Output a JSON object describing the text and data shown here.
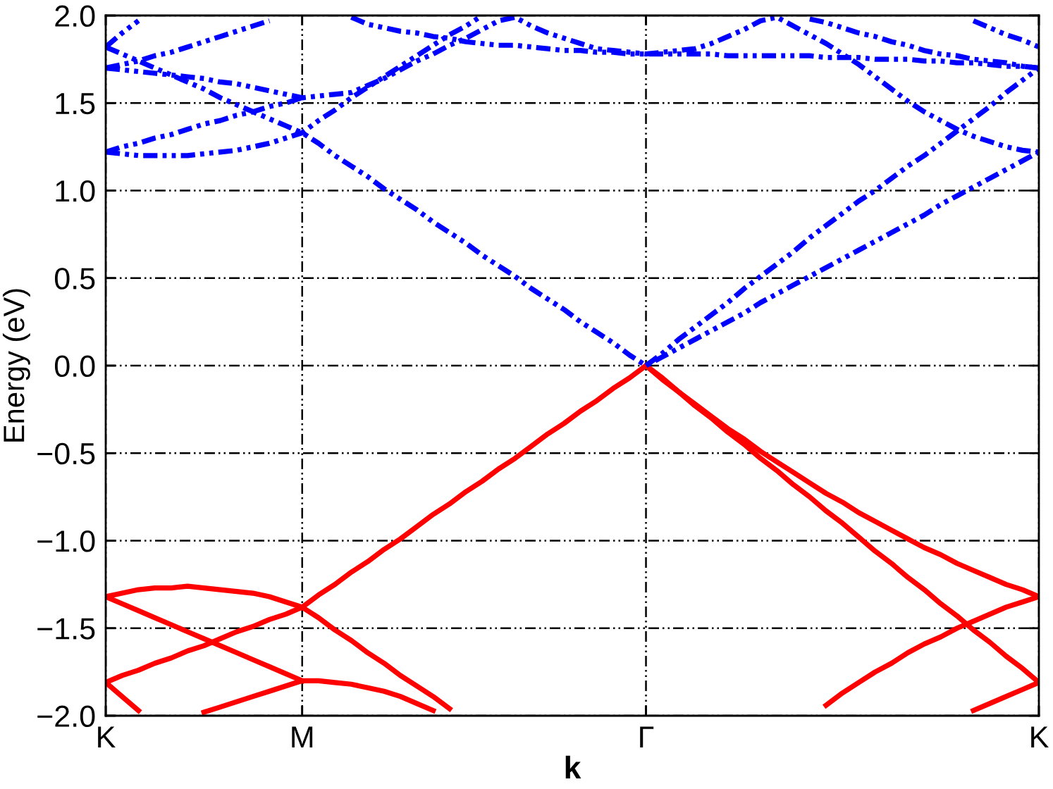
{
  "chart_data": {
    "type": "line",
    "xlabel": "k",
    "ylabel": "Energy (eV)",
    "categories": [
      "K",
      null,
      null,
      null,
      null,
      null,
      null,
      null,
      null,
      null,
      null,
      null,
      "M",
      null,
      null,
      null,
      null,
      null,
      null,
      null,
      null,
      null,
      null,
      null,
      null,
      null,
      null,
      null,
      null,
      null,
      null,
      null,
      null,
      "Γ",
      null,
      null,
      null,
      null,
      null,
      null,
      null,
      null,
      null,
      null,
      null,
      null,
      null,
      null,
      null,
      null,
      null,
      null,
      null,
      null,
      null,
      null,
      null,
      "K"
    ],
    "ylim": [
      -2.0,
      2.0
    ],
    "yticks": [
      {
        "value": -2.0,
        "label": "−2.0"
      },
      {
        "value": -1.5,
        "label": "−1.5"
      },
      {
        "value": -1.0,
        "label": "−1.0"
      },
      {
        "value": -0.5,
        "label": "−0.5"
      },
      {
        "value": 0.0,
        "label": "0.0"
      },
      {
        "value": 0.5,
        "label": "0.5"
      },
      {
        "value": 1.0,
        "label": "1.0"
      },
      {
        "value": 1.5,
        "label": "1.5"
      },
      {
        "value": 2.0,
        "label": "2.0"
      }
    ],
    "grid": true,
    "marker": "none",
    "series": [
      {
        "color": "#ff0000",
        "line_style": "solid",
        "values": [
          null,
          null,
          null,
          null,
          null,
          null,
          null,
          null,
          null,
          null,
          null,
          null,
          -1.38,
          -1.31,
          -1.25,
          -1.18,
          -1.12,
          -1.05,
          -0.99,
          -0.92,
          -0.85,
          -0.79,
          -0.72,
          -0.66,
          -0.59,
          -0.53,
          -0.46,
          -0.39,
          -0.33,
          -0.26,
          -0.2,
          -0.13,
          -0.07,
          0,
          -0.08,
          -0.15,
          -0.23,
          -0.3,
          -0.38,
          -0.45,
          -0.53,
          -0.6,
          -0.68,
          -0.75,
          -0.83,
          -0.9,
          -0.98,
          -1.06,
          -1.13,
          -1.21,
          -1.28,
          -1.36,
          -1.43,
          -1.51,
          -1.58,
          -1.66,
          -1.73,
          -1.81
        ]
      },
      {
        "color": "#ff0000",
        "line_style": "solid",
        "values": [
          null,
          null,
          null,
          null,
          null,
          null,
          null,
          null,
          null,
          null,
          null,
          null,
          null,
          null,
          null,
          null,
          null,
          null,
          null,
          null,
          null,
          null,
          null,
          null,
          null,
          null,
          null,
          null,
          null,
          null,
          null,
          null,
          null,
          0,
          -0.07,
          -0.15,
          -0.22,
          -0.29,
          -0.36,
          -0.42,
          -0.49,
          -0.55,
          -0.61,
          -0.67,
          -0.73,
          -0.78,
          -0.84,
          -0.89,
          -0.94,
          -0.99,
          -1.04,
          -1.08,
          -1.13,
          -1.17,
          -1.21,
          -1.25,
          -1.28,
          -1.32
        ]
      },
      {
        "color": "#ff0000",
        "line_style": "solid",
        "values": [
          -1.32,
          -1.3,
          -1.28,
          -1.27,
          -1.27,
          -1.26,
          -1.27,
          -1.28,
          -1.29,
          -1.3,
          -1.32,
          -1.35,
          -1.38,
          null,
          null,
          null,
          null,
          null,
          null,
          null,
          null,
          null,
          null,
          null,
          null,
          null,
          null,
          null,
          null,
          null,
          null,
          null,
          null,
          null,
          null,
          null,
          null,
          null,
          null,
          null,
          null,
          null,
          null,
          null,
          null,
          null,
          null,
          null,
          null,
          null,
          null,
          null,
          null,
          null,
          null,
          null,
          null,
          null
        ]
      },
      {
        "color": "#ff0000",
        "line_style": "solid",
        "values": [
          -1.32,
          -1.36,
          -1.4,
          -1.44,
          -1.48,
          -1.52,
          -1.56,
          -1.6,
          -1.64,
          -1.68,
          -1.72,
          -1.76,
          -1.8,
          null,
          null,
          null,
          null,
          null,
          null,
          null,
          null,
          null,
          null,
          null,
          null,
          null,
          null,
          null,
          null,
          null,
          null,
          null,
          null,
          null,
          null,
          null,
          null,
          null,
          null,
          null,
          null,
          null,
          null,
          null,
          null,
          null,
          null,
          null,
          null,
          null,
          null,
          null,
          null,
          null,
          null,
          null,
          null,
          null
        ]
      },
      {
        "color": "#ff0000",
        "line_style": "solid",
        "values": [
          -1.81,
          -1.77,
          -1.74,
          -1.7,
          -1.67,
          -1.63,
          -1.6,
          -1.56,
          -1.52,
          -1.49,
          -1.45,
          -1.42,
          -1.38,
          -1.44,
          -1.51,
          -1.57,
          -1.64,
          -1.7,
          -1.77,
          -1.83,
          -1.89,
          -1.96,
          null,
          null,
          null,
          null,
          null,
          null,
          null,
          null,
          null,
          null,
          null,
          null,
          null,
          null,
          null,
          null,
          null,
          null,
          null,
          null,
          null,
          null,
          null,
          null,
          null,
          null,
          null,
          null,
          null,
          null,
          null,
          null,
          null,
          null,
          null,
          null
        ]
      },
      {
        "color": "#ff0000",
        "line_style": "solid",
        "values": [
          -1.81,
          -1.89,
          -1.97,
          null,
          null,
          null,
          null,
          null,
          null,
          null,
          null,
          null,
          null,
          null,
          null,
          null,
          null,
          null,
          null,
          null,
          null,
          null,
          null,
          null,
          null,
          null,
          null,
          null,
          null,
          null,
          null,
          null,
          null,
          null,
          null,
          null,
          null,
          null,
          null,
          null,
          null,
          null,
          null,
          null,
          null,
          null,
          null,
          null,
          null,
          null,
          null,
          null,
          null,
          null,
          null,
          null,
          null,
          null
        ]
      },
      {
        "color": "#ff0000",
        "line_style": "solid",
        "values": [
          null,
          null,
          null,
          null,
          null,
          null,
          -1.98,
          -1.95,
          -1.92,
          -1.89,
          -1.86,
          -1.83,
          -1.8,
          -1.8,
          -1.81,
          -1.82,
          -1.84,
          -1.86,
          -1.89,
          -1.93,
          -1.97,
          null,
          null,
          null,
          null,
          null,
          null,
          null,
          null,
          null,
          null,
          null,
          null,
          null,
          null,
          null,
          null,
          null,
          null,
          null,
          null,
          null,
          null,
          null,
          null,
          null,
          null,
          null,
          null,
          null,
          null,
          null,
          null,
          null,
          null,
          null,
          null,
          null
        ]
      },
      {
        "color": "#ff0000",
        "line_style": "solid",
        "values": [
          null,
          null,
          null,
          null,
          null,
          null,
          null,
          null,
          null,
          null,
          null,
          null,
          null,
          null,
          null,
          null,
          null,
          null,
          null,
          null,
          null,
          null,
          null,
          null,
          null,
          null,
          null,
          null,
          null,
          null,
          null,
          null,
          null,
          null,
          null,
          null,
          null,
          null,
          null,
          null,
          null,
          null,
          null,
          null,
          -1.94,
          -1.87,
          -1.81,
          -1.75,
          -1.7,
          -1.64,
          -1.59,
          -1.55,
          -1.5,
          -1.46,
          -1.42,
          -1.38,
          -1.35,
          -1.32
        ]
      },
      {
        "color": "#ff0000",
        "line_style": "solid",
        "values": [
          null,
          null,
          null,
          null,
          null,
          null,
          null,
          null,
          null,
          null,
          null,
          null,
          null,
          null,
          null,
          null,
          null,
          null,
          null,
          null,
          null,
          null,
          null,
          null,
          null,
          null,
          null,
          null,
          null,
          null,
          null,
          null,
          null,
          null,
          null,
          null,
          null,
          null,
          null,
          null,
          null,
          null,
          null,
          null,
          null,
          null,
          null,
          null,
          null,
          null,
          null,
          null,
          null,
          -1.97,
          -1.93,
          -1.89,
          -1.85,
          -1.81
        ]
      },
      {
        "color": "#0000ff",
        "line_style": "dashed",
        "values": [
          1.82,
          1.9,
          1.97,
          null,
          null,
          null,
          null,
          null,
          null,
          null,
          null,
          null,
          null,
          null,
          null,
          null,
          null,
          null,
          null,
          null,
          null,
          null,
          null,
          null,
          null,
          null,
          null,
          null,
          null,
          null,
          null,
          null,
          null,
          null,
          null,
          null,
          null,
          null,
          null,
          null,
          null,
          null,
          null,
          null,
          null,
          null,
          null,
          null,
          null,
          null,
          null,
          null,
          null,
          null,
          null,
          null,
          null,
          null
        ]
      },
      {
        "color": "#0000ff",
        "line_style": "dashed",
        "values": [
          1.82,
          1.78,
          1.74,
          1.7,
          1.66,
          1.62,
          1.58,
          1.53,
          1.49,
          1.45,
          1.41,
          1.37,
          1.33,
          1.27,
          1.2,
          1.14,
          1.08,
          1.01,
          0.95,
          0.89,
          0.82,
          0.76,
          0.7,
          0.63,
          0.57,
          0.51,
          0.44,
          0.38,
          0.32,
          0.25,
          0.19,
          0.13,
          0.06,
          0,
          0.05,
          0.1,
          0.15,
          0.2,
          0.25,
          0.3,
          0.36,
          0.41,
          0.46,
          0.51,
          0.56,
          0.61,
          0.66,
          0.71,
          0.76,
          0.81,
          0.86,
          0.92,
          0.97,
          1.02,
          1.07,
          1.12,
          1.17,
          1.22
        ]
      },
      {
        "color": "#0000ff",
        "line_style": "dashed",
        "values": [
          1.7,
          1.72,
          1.74,
          1.77,
          1.79,
          1.82,
          1.85,
          1.88,
          1.91,
          1.94,
          1.97,
          null,
          null,
          null,
          null,
          null,
          null,
          null,
          null,
          null,
          null,
          null,
          null,
          null,
          null,
          null,
          null,
          null,
          null,
          null,
          null,
          null,
          null,
          null,
          null,
          null,
          null,
          null,
          null,
          null,
          null,
          null,
          null,
          null,
          null,
          null,
          null,
          null,
          null,
          null,
          null,
          null,
          null,
          null,
          null,
          null,
          null,
          null
        ]
      },
      {
        "color": "#0000ff",
        "line_style": "dashed",
        "values": [
          1.7,
          1.69,
          1.68,
          1.67,
          1.66,
          1.65,
          1.64,
          1.62,
          1.61,
          1.59,
          1.57,
          1.55,
          1.53,
          1.54,
          1.55,
          1.56,
          1.6,
          1.64,
          1.69,
          1.74,
          1.78,
          1.83,
          1.87,
          1.92,
          1.97,
          1.99,
          1.94,
          1.9,
          1.87,
          1.84,
          1.81,
          1.8,
          1.79,
          1.78,
          1.79,
          1.8,
          1.81,
          1.84,
          1.88,
          1.92,
          1.97,
          1.99,
          1.94,
          1.89,
          1.84,
          1.78,
          1.72,
          1.65,
          1.58,
          1.51,
          1.45,
          1.4,
          1.35,
          1.31,
          1.28,
          1.25,
          1.23,
          1.22
        ]
      },
      {
        "color": "#0000ff",
        "line_style": "dashed",
        "values": [
          1.22,
          1.21,
          1.2,
          1.2,
          1.2,
          1.2,
          1.21,
          1.22,
          1.23,
          1.25,
          1.27,
          1.3,
          1.33,
          1.4,
          1.46,
          1.53,
          1.59,
          1.65,
          1.71,
          1.77,
          1.83,
          1.89,
          1.94,
          2.0,
          null,
          null,
          null,
          null,
          null,
          null,
          null,
          null,
          null,
          null,
          null,
          null,
          null,
          null,
          null,
          null,
          null,
          null,
          null,
          null,
          null,
          null,
          null,
          null,
          null,
          null,
          null,
          null,
          null,
          null,
          null,
          null,
          null,
          null
        ]
      },
      {
        "color": "#0000ff",
        "line_style": "dashed",
        "values": [
          1.22,
          1.25,
          1.27,
          1.3,
          1.32,
          1.35,
          1.38,
          1.4,
          1.43,
          1.45,
          1.48,
          1.5,
          1.53,
          null,
          null,
          null,
          null,
          null,
          null,
          null,
          null,
          null,
          null,
          null,
          null,
          null,
          null,
          null,
          null,
          null,
          null,
          null,
          null,
          null,
          null,
          null,
          null,
          null,
          null,
          null,
          null,
          null,
          null,
          null,
          null,
          null,
          null,
          null,
          null,
          null,
          null,
          null,
          null,
          null,
          null,
          null,
          null,
          null
        ]
      },
      {
        "color": "#0000ff",
        "line_style": "dashed",
        "values": [
          null,
          null,
          null,
          null,
          null,
          null,
          null,
          null,
          null,
          null,
          null,
          null,
          null,
          null,
          null,
          1.99,
          1.95,
          1.93,
          1.91,
          1.9,
          1.88,
          1.87,
          1.85,
          1.84,
          1.83,
          1.83,
          1.82,
          1.81,
          1.8,
          1.8,
          1.79,
          1.79,
          1.78,
          1.78,
          1.78,
          1.78,
          1.78,
          1.78,
          1.77,
          1.77,
          1.77,
          1.77,
          1.77,
          1.77,
          1.76,
          1.76,
          1.76,
          1.75,
          1.75,
          1.75,
          1.74,
          1.74,
          1.73,
          1.73,
          1.72,
          1.71,
          1.71,
          1.7
        ]
      },
      {
        "color": "#0000ff",
        "line_style": "dashed",
        "values": [
          null,
          null,
          null,
          null,
          null,
          null,
          null,
          null,
          null,
          null,
          null,
          null,
          null,
          null,
          null,
          null,
          null,
          null,
          null,
          null,
          null,
          null,
          null,
          null,
          null,
          null,
          null,
          null,
          null,
          null,
          null,
          null,
          null,
          null,
          null,
          null,
          null,
          null,
          null,
          null,
          null,
          null,
          null,
          1.98,
          1.96,
          1.93,
          1.9,
          1.88,
          1.85,
          1.83,
          1.8,
          1.78,
          1.77,
          1.75,
          1.74,
          1.73,
          1.71,
          1.7
        ]
      },
      {
        "color": "#0000ff",
        "line_style": "dashed",
        "values": [
          null,
          null,
          null,
          null,
          null,
          null,
          null,
          null,
          null,
          null,
          null,
          null,
          null,
          null,
          null,
          null,
          null,
          null,
          null,
          null,
          null,
          null,
          null,
          null,
          null,
          null,
          null,
          null,
          null,
          null,
          null,
          null,
          null,
          0,
          0.07,
          0.15,
          0.22,
          0.29,
          0.36,
          0.44,
          0.51,
          0.58,
          0.65,
          0.73,
          0.8,
          0.87,
          0.94,
          1.0,
          1.07,
          1.14,
          1.2,
          1.27,
          1.34,
          1.41,
          1.48,
          1.56,
          1.63,
          1.7
        ]
      },
      {
        "color": "#0000ff",
        "line_style": "dashed",
        "values": [
          null,
          null,
          null,
          null,
          null,
          null,
          null,
          null,
          null,
          null,
          null,
          null,
          null,
          null,
          null,
          null,
          null,
          null,
          null,
          null,
          null,
          null,
          null,
          null,
          null,
          null,
          null,
          null,
          null,
          null,
          null,
          null,
          null,
          null,
          null,
          null,
          null,
          null,
          null,
          null,
          null,
          null,
          null,
          null,
          null,
          null,
          null,
          null,
          null,
          null,
          null,
          null,
          null,
          1.97,
          1.93,
          1.89,
          1.86,
          1.82
        ]
      }
    ]
  }
}
